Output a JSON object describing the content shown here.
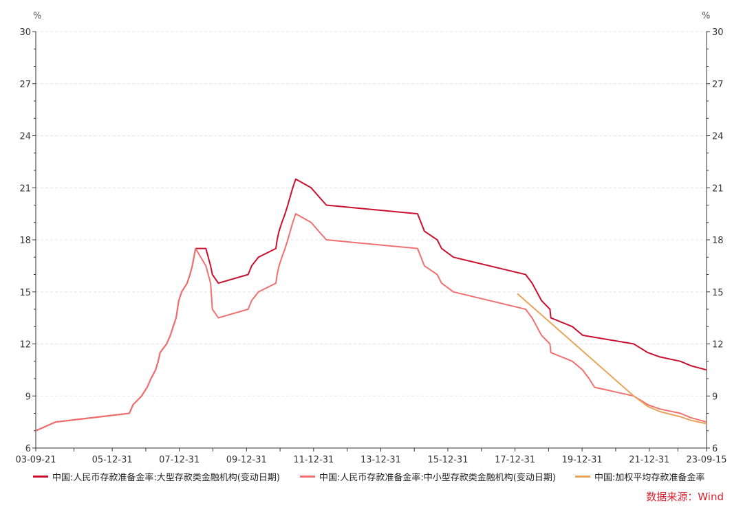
{
  "unit_left": "%",
  "unit_right": "%",
  "source": "数据来源：Wind",
  "colors": {
    "large": "#c8102e",
    "small": "#f07070",
    "weighted": "#e8a45a",
    "grid": "#e4e4e4",
    "axis": "#333333"
  },
  "chart_data": {
    "type": "line",
    "title": "",
    "x_axis": {
      "type": "date",
      "start": "2003-09-21",
      "end": "2023-09-15",
      "ticks": [
        "2003-09-21",
        "2005-12-31",
        "2007-12-31",
        "2009-12-31",
        "2011-12-31",
        "2013-12-31",
        "2015-12-31",
        "2017-12-31",
        "2019-12-31",
        "2021-12-31",
        "2023-09-15"
      ],
      "tick_labels": [
        "03-09-21",
        "05-12-31",
        "07-12-31",
        "09-12-31",
        "11-12-31",
        "13-12-31",
        "15-12-31",
        "17-12-31",
        "19-12-31",
        "21-12-31",
        "23-09-15"
      ]
    },
    "y_axis": {
      "ylim": [
        6,
        30
      ],
      "ticks": [
        6,
        9,
        12,
        15,
        18,
        21,
        24,
        27,
        30
      ],
      "unit": "%"
    },
    "y2_axis": {
      "ylim": [
        6,
        30
      ],
      "ticks": [
        6,
        9,
        12,
        15,
        18,
        21,
        24,
        27,
        30
      ],
      "unit": "%"
    },
    "grid": true,
    "legend_position": "bottom",
    "series": [
      {
        "name": "中国:人民币存款准备金率:大型存款类金融机构(变动日期)",
        "color": "#c8102e",
        "points": [
          [
            "2003-09-21",
            7.0
          ],
          [
            "2004-04-25",
            7.5
          ],
          [
            "2006-07-05",
            8.0
          ],
          [
            "2006-08-15",
            8.5
          ],
          [
            "2006-11-15",
            9.0
          ],
          [
            "2007-01-15",
            9.5
          ],
          [
            "2007-02-25",
            10.0
          ],
          [
            "2007-04-16",
            10.5
          ],
          [
            "2007-05-15",
            11.0
          ],
          [
            "2007-06-05",
            11.5
          ],
          [
            "2007-08-15",
            12.0
          ],
          [
            "2007-09-25",
            12.5
          ],
          [
            "2007-10-25",
            13.0
          ],
          [
            "2007-11-26",
            13.5
          ],
          [
            "2007-12-25",
            14.5
          ],
          [
            "2008-01-25",
            15.0
          ],
          [
            "2008-03-25",
            15.5
          ],
          [
            "2008-04-25",
            16.0
          ],
          [
            "2008-05-20",
            16.5
          ],
          [
            "2008-06-25",
            17.5
          ],
          [
            "2008-10-15",
            17.5
          ],
          [
            "2008-12-05",
            16.5
          ],
          [
            "2008-12-25",
            16.0
          ],
          [
            "2009-02-28",
            15.5
          ],
          [
            "2010-01-18",
            16.0
          ],
          [
            "2010-02-25",
            16.5
          ],
          [
            "2010-05-10",
            17.0
          ],
          [
            "2010-11-16",
            17.5
          ],
          [
            "2010-11-29",
            18.0
          ],
          [
            "2010-12-20",
            18.5
          ],
          [
            "2011-01-20",
            19.0
          ],
          [
            "2011-02-24",
            19.5
          ],
          [
            "2011-03-25",
            20.0
          ],
          [
            "2011-04-21",
            20.5
          ],
          [
            "2011-05-18",
            21.0
          ],
          [
            "2011-06-20",
            21.5
          ],
          [
            "2011-12-05",
            21.0
          ],
          [
            "2012-02-24",
            20.5
          ],
          [
            "2012-05-18",
            20.0
          ],
          [
            "2015-02-05",
            19.5
          ],
          [
            "2015-04-20",
            18.5
          ],
          [
            "2015-09-06",
            18.0
          ],
          [
            "2015-10-24",
            17.5
          ],
          [
            "2016-03-01",
            17.0
          ],
          [
            "2018-04-25",
            16.0
          ],
          [
            "2018-07-05",
            15.5
          ],
          [
            "2018-10-15",
            14.5
          ],
          [
            "2019-01-15",
            14.0
          ],
          [
            "2019-01-25",
            13.5
          ],
          [
            "2019-09-16",
            13.0
          ],
          [
            "2020-01-06",
            12.5
          ],
          [
            "2021-07-15",
            12.0
          ],
          [
            "2021-12-15",
            11.5
          ],
          [
            "2022-04-25",
            11.25
          ],
          [
            "2022-12-05",
            11.0
          ],
          [
            "2023-03-27",
            10.75
          ],
          [
            "2023-09-15",
            10.5
          ]
        ]
      },
      {
        "name": "中国:人民币存款准备金率:中小型存款类金融机构(变动日期)",
        "color": "#f07070",
        "points": [
          [
            "2003-09-21",
            7.0
          ],
          [
            "2004-04-25",
            7.5
          ],
          [
            "2006-07-05",
            8.0
          ],
          [
            "2006-08-15",
            8.5
          ],
          [
            "2006-11-15",
            9.0
          ],
          [
            "2007-01-15",
            9.5
          ],
          [
            "2007-02-25",
            10.0
          ],
          [
            "2007-04-16",
            10.5
          ],
          [
            "2007-05-15",
            11.0
          ],
          [
            "2007-06-05",
            11.5
          ],
          [
            "2007-08-15",
            12.0
          ],
          [
            "2007-09-25",
            12.5
          ],
          [
            "2007-10-25",
            13.0
          ],
          [
            "2007-11-26",
            13.5
          ],
          [
            "2007-12-25",
            14.5
          ],
          [
            "2008-01-25",
            15.0
          ],
          [
            "2008-03-25",
            15.5
          ],
          [
            "2008-04-25",
            16.0
          ],
          [
            "2008-05-20",
            16.5
          ],
          [
            "2008-06-25",
            17.5
          ],
          [
            "2008-10-15",
            16.5
          ],
          [
            "2008-12-05",
            15.5
          ],
          [
            "2008-12-25",
            14.0
          ],
          [
            "2009-02-28",
            13.5
          ],
          [
            "2010-01-18",
            14.0
          ],
          [
            "2010-02-25",
            14.5
          ],
          [
            "2010-05-10",
            15.0
          ],
          [
            "2010-11-16",
            15.5
          ],
          [
            "2010-11-29",
            16.0
          ],
          [
            "2010-12-20",
            16.5
          ],
          [
            "2011-01-20",
            17.0
          ],
          [
            "2011-02-24",
            17.5
          ],
          [
            "2011-03-25",
            18.0
          ],
          [
            "2011-04-21",
            18.5
          ],
          [
            "2011-05-18",
            19.0
          ],
          [
            "2011-06-20",
            19.5
          ],
          [
            "2011-12-05",
            19.0
          ],
          [
            "2012-02-24",
            18.5
          ],
          [
            "2012-05-18",
            18.0
          ],
          [
            "2015-02-05",
            17.5
          ],
          [
            "2015-04-20",
            16.5
          ],
          [
            "2015-09-06",
            16.0
          ],
          [
            "2015-10-24",
            15.5
          ],
          [
            "2016-03-01",
            15.0
          ],
          [
            "2018-04-25",
            14.0
          ],
          [
            "2018-07-05",
            13.5
          ],
          [
            "2018-10-15",
            12.5
          ],
          [
            "2019-01-15",
            12.0
          ],
          [
            "2019-01-25",
            11.5
          ],
          [
            "2019-09-16",
            11.0
          ],
          [
            "2020-01-06",
            10.5
          ],
          [
            "2020-03-16",
            10.0
          ],
          [
            "2020-05-15",
            9.5
          ],
          [
            "2021-07-15",
            9.0
          ],
          [
            "2021-12-15",
            8.5
          ],
          [
            "2022-04-25",
            8.25
          ],
          [
            "2022-12-05",
            8.0
          ],
          [
            "2023-03-27",
            7.75
          ],
          [
            "2023-09-15",
            7.5
          ]
        ]
      },
      {
        "name": "中国:加权平均存款准备金率",
        "color": "#e8a45a",
        "points": [
          [
            "2018-01-25",
            14.9
          ],
          [
            "2021-07-15",
            9.0
          ],
          [
            "2021-12-15",
            8.4
          ],
          [
            "2022-04-25",
            8.1
          ],
          [
            "2022-12-05",
            7.8
          ],
          [
            "2023-03-27",
            7.6
          ],
          [
            "2023-09-15",
            7.4
          ]
        ]
      }
    ]
  }
}
